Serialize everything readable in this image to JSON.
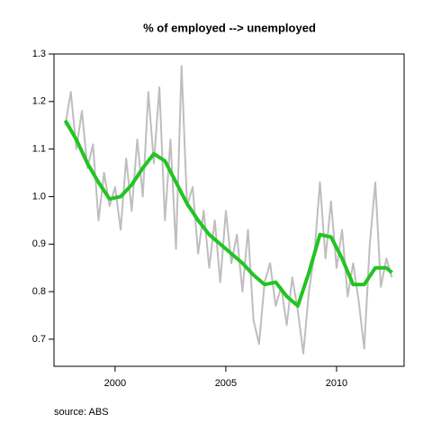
{
  "chart_data": {
    "type": "line",
    "title": "% of employed --> unemployed",
    "source": "source: ABS",
    "xlim": [
      1997.24,
      2013.05
    ],
    "xticks": [
      2000,
      2005,
      2010
    ],
    "ylim": [
      0.643,
      1.3
    ],
    "yticks": [
      0.7,
      0.8,
      0.9,
      {
        "value": 1,
        "label": "1.0"
      },
      1.1,
      1.2,
      1.3
    ],
    "series": [
      {
        "color": "#bebebe",
        "width": 2,
        "x": [
          1997.75,
          1998,
          1998.25,
          1998.5,
          1998.75,
          1999,
          1999.25,
          1999.5,
          1999.75,
          2000,
          2000.25,
          2000.5,
          2000.75,
          2001,
          2001.25,
          2001.5,
          2001.75,
          2002,
          2002.25,
          2002.5,
          2002.75,
          2003,
          2003.25,
          2003.5,
          2003.75,
          2004,
          2004.25,
          2004.5,
          2004.75,
          2005,
          2005.25,
          2005.5,
          2005.75,
          2006,
          2006.25,
          2006.5,
          2006.75,
          2007,
          2007.25,
          2007.5,
          2007.75,
          2008,
          2008.25,
          2008.5,
          2008.75,
          2009,
          2009.25,
          2009.5,
          2009.75,
          2010,
          2010.25,
          2010.5,
          2010.75,
          2011,
          2011.25,
          2011.5,
          2011.75,
          2012,
          2012.25,
          2012.5
        ],
        "values": [
          1.15,
          1.22,
          1.1,
          1.18,
          1.06,
          1.11,
          0.95,
          1.05,
          0.98,
          1.02,
          0.93,
          1.08,
          0.97,
          1.12,
          1.0,
          1.22,
          1.07,
          1.23,
          0.95,
          1.12,
          0.89,
          1.275,
          0.98,
          1.02,
          0.88,
          0.97,
          0.85,
          0.95,
          0.82,
          0.97,
          0.86,
          0.92,
          0.8,
          0.93,
          0.74,
          0.69,
          0.82,
          0.86,
          0.77,
          0.81,
          0.73,
          0.83,
          0.76,
          0.67,
          0.8,
          0.88,
          1.03,
          0.87,
          0.99,
          0.85,
          0.93,
          0.79,
          0.86,
          0.78,
          0.68,
          0.9,
          1.03,
          0.81,
          0.87,
          0.83
        ]
      },
      {
        "color": "#22c422",
        "width": 4,
        "x": [
          1997.75,
          1998.25,
          1998.75,
          1999.25,
          1999.75,
          2000.25,
          2000.75,
          2001.25,
          2001.75,
          2002.25,
          2002.75,
          2003.25,
          2003.75,
          2004.25,
          2004.75,
          2005.25,
          2005.75,
          2006.25,
          2006.75,
          2007.25,
          2007.75,
          2008.25,
          2008.75,
          2009.25,
          2009.75,
          2010.25,
          2010.75,
          2011.25,
          2011.75,
          2012.25,
          2012.5
        ],
        "values": [
          1.16,
          1.12,
          1.07,
          1.03,
          0.995,
          1.0,
          1.025,
          1.06,
          1.09,
          1.075,
          1.03,
          0.985,
          0.95,
          0.92,
          0.9,
          0.88,
          0.86,
          0.835,
          0.815,
          0.82,
          0.79,
          0.77,
          0.84,
          0.92,
          0.915,
          0.87,
          0.815,
          0.815,
          0.85,
          0.85,
          0.84
        ]
      }
    ]
  }
}
